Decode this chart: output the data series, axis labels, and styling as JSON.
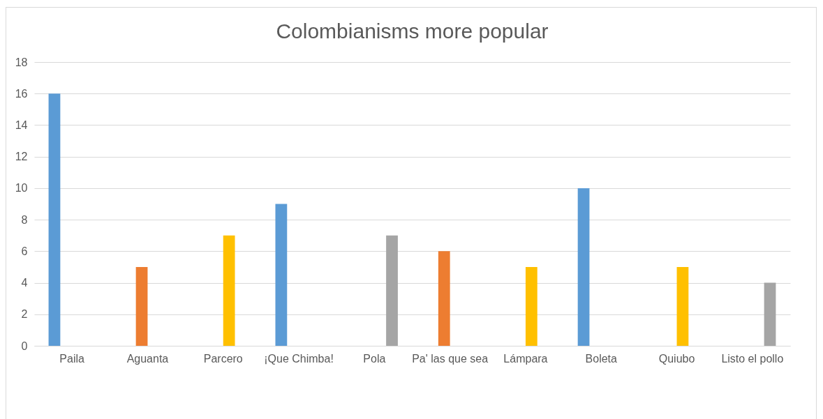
{
  "chart_data": {
    "type": "bar",
    "title": "Colombianisms more popular",
    "categories": [
      "Paila",
      "Aguanta",
      "Parcero",
      "¡Que Chimba!",
      "Pola",
      "Pa' las que sea",
      "Lámpara",
      "Boleta",
      "Quiubo",
      "Listo el pollo"
    ],
    "series": [
      {
        "color": "#5b9bd5",
        "values": [
          16,
          null,
          null,
          9,
          null,
          null,
          null,
          10,
          null,
          null
        ]
      },
      {
        "color": "#ed7d31",
        "values": [
          null,
          5,
          null,
          null,
          null,
          6,
          null,
          null,
          null,
          null
        ]
      },
      {
        "color": "#ffc000",
        "values": [
          null,
          null,
          7,
          null,
          null,
          null,
          5,
          null,
          5,
          null
        ]
      },
      {
        "color": "#a5a5a5",
        "values": [
          null,
          null,
          null,
          null,
          7,
          null,
          null,
          null,
          null,
          4
        ]
      }
    ],
    "ylim": [
      0,
      18
    ],
    "yticks": [
      0,
      2,
      4,
      6,
      8,
      10,
      12,
      14,
      16,
      18
    ],
    "grid": "y"
  }
}
